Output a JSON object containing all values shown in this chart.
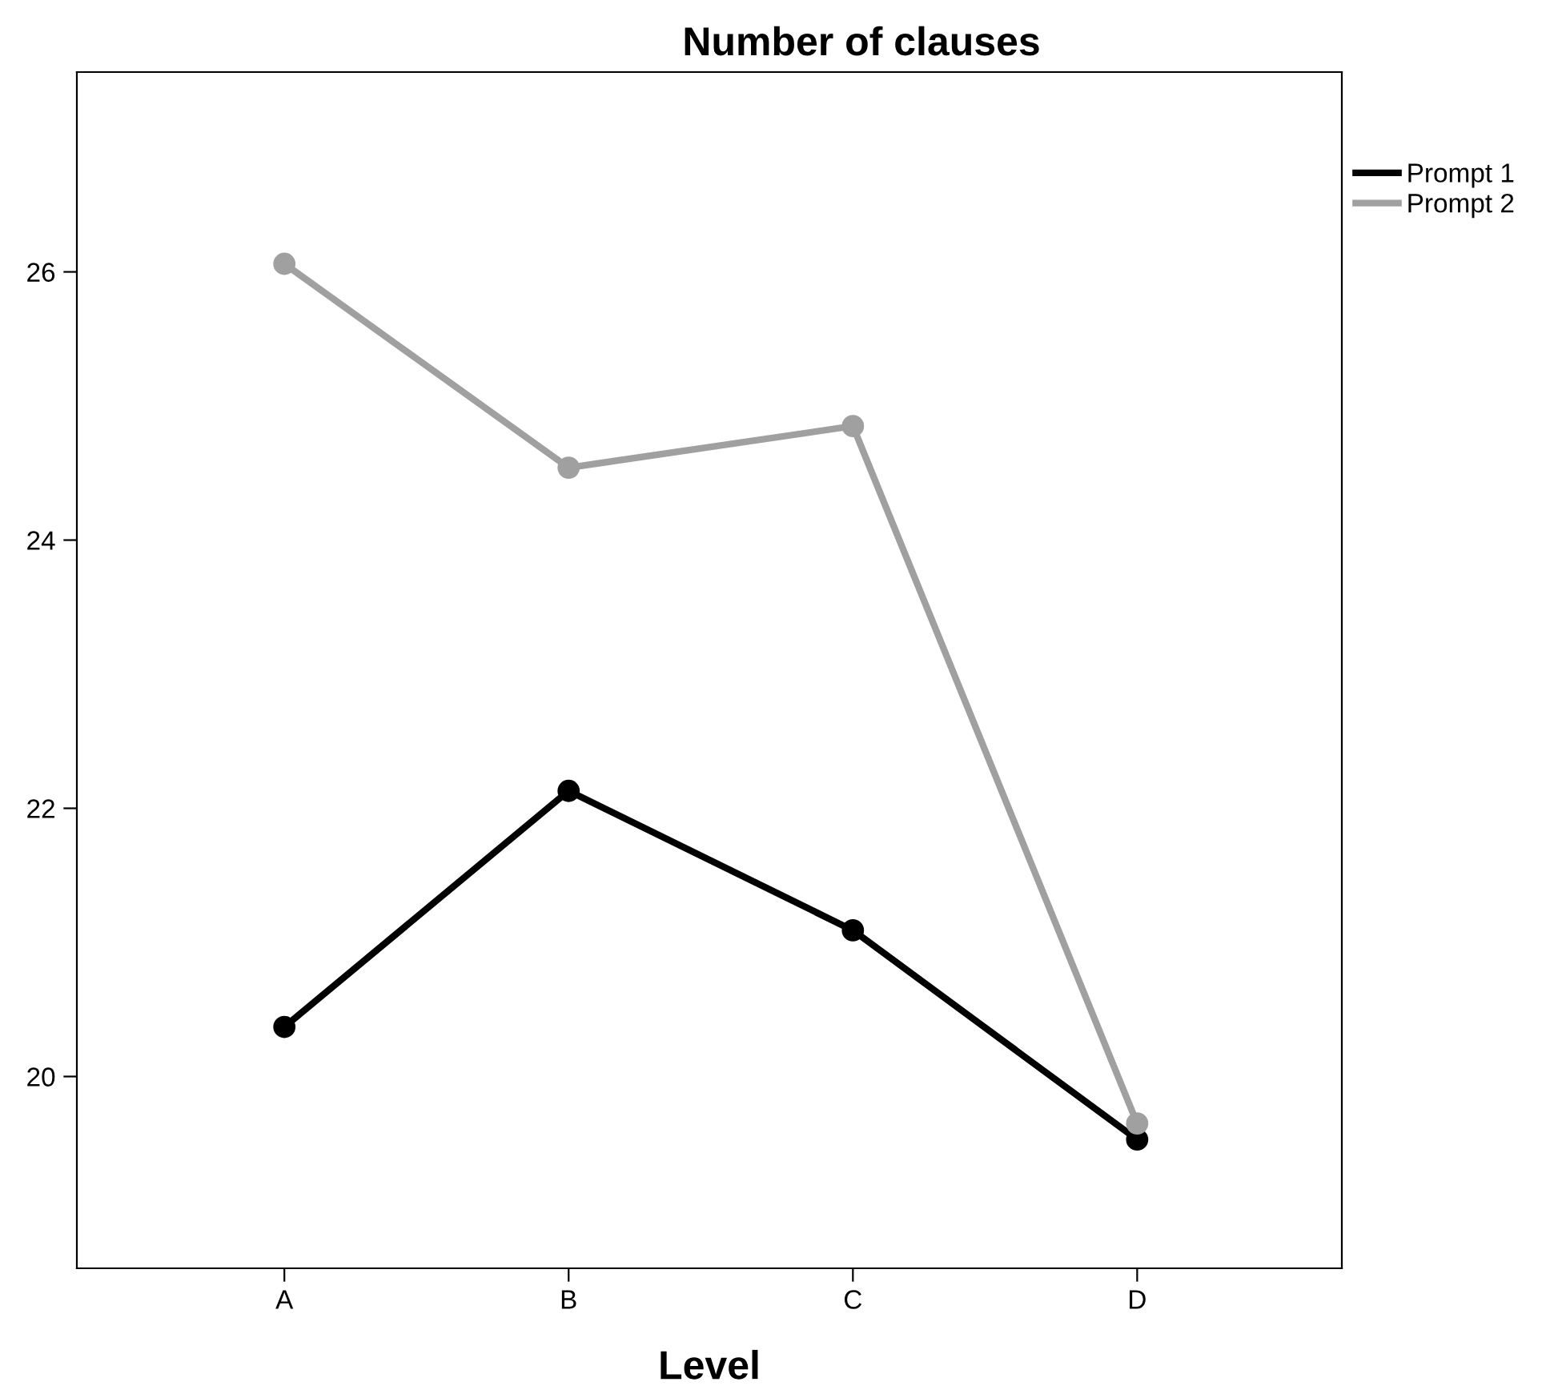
{
  "chart_data": {
    "type": "line",
    "title": "Number of clauses",
    "xlabel": "Level",
    "categories": [
      "A",
      "B",
      "C",
      "D"
    ],
    "series": [
      {
        "name": "Prompt 1",
        "color": "#000000",
        "values": [
          20.37,
          22.13,
          21.09,
          19.53
        ]
      },
      {
        "name": "Prompt 2",
        "color": "#a0a0a0",
        "values": [
          26.06,
          24.54,
          24.85,
          19.65
        ]
      }
    ],
    "ylim": [
      18.57,
      27.49
    ],
    "yticks": [
      20,
      22,
      24,
      26
    ],
    "grid": false,
    "legend": "top right",
    "marker": "circle",
    "line_style": "solid"
  }
}
